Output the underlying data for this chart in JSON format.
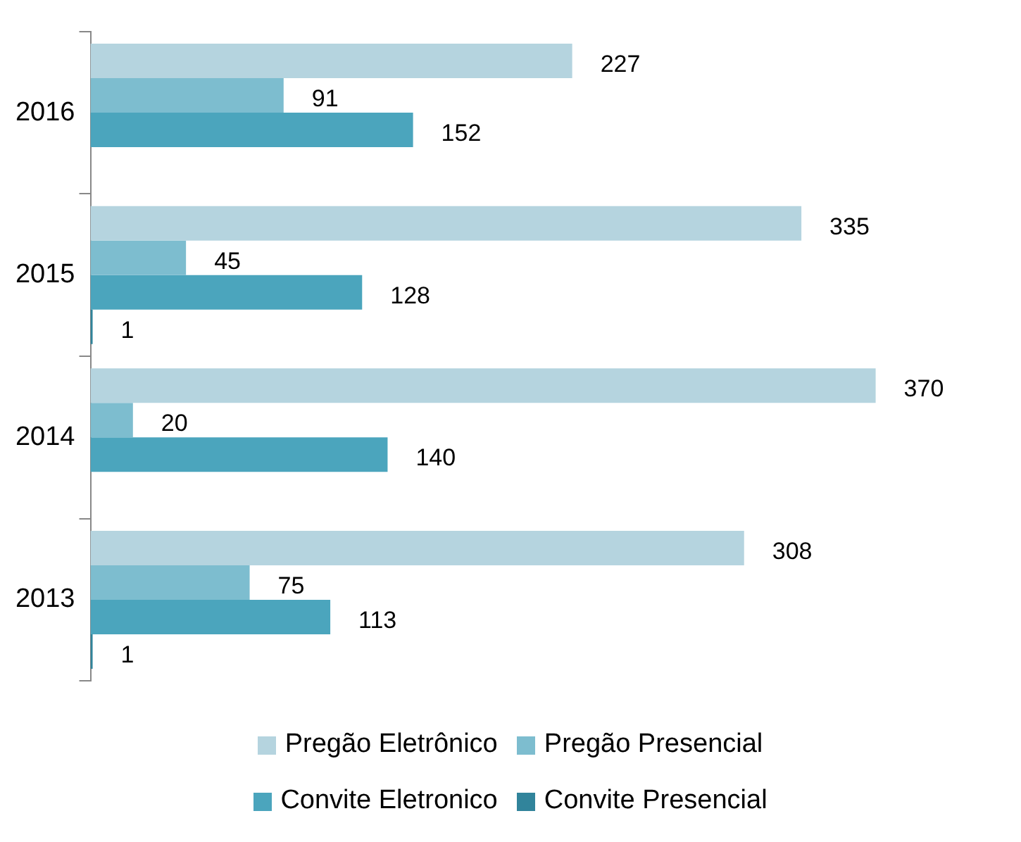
{
  "chart_data": {
    "type": "bar",
    "orientation": "horizontal",
    "categories": [
      "2016",
      "2015",
      "2014",
      "2013"
    ],
    "series": [
      {
        "name": "Pregão Eletrônico",
        "color": "#b5d4df",
        "values": [
          227,
          335,
          370,
          308
        ]
      },
      {
        "name": "Pregão Presencial",
        "color": "#7dbdcf",
        "values": [
          91,
          45,
          20,
          75
        ]
      },
      {
        "name": "Convite Eletronico",
        "color": "#4ba5bd",
        "values": [
          152,
          128,
          140,
          113
        ]
      },
      {
        "name": "Convite Presencial",
        "color": "#31849b",
        "values": [
          null,
          1,
          null,
          1
        ]
      }
    ],
    "data_labels": true,
    "tick_labels": "y",
    "grid": false,
    "legend": "bottom"
  }
}
